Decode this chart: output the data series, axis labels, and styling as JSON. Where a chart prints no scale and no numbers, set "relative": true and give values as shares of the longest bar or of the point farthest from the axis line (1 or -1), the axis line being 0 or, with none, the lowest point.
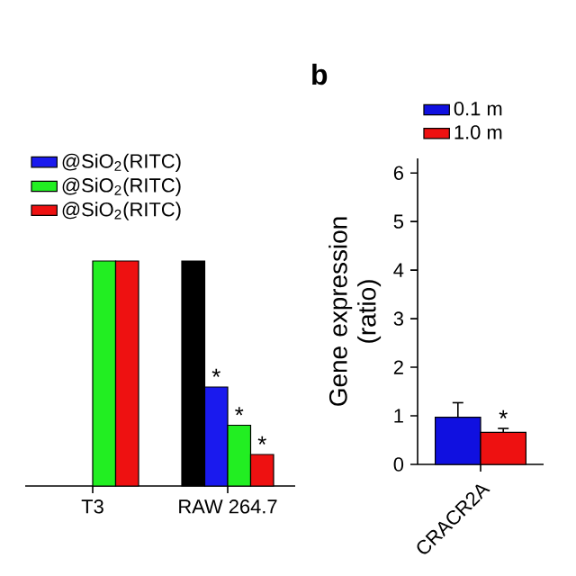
{
  "chart_data": [
    {
      "type": "bar",
      "relative": true,
      "categories": [
        "T3",
        "RAW 264.7"
      ],
      "legend": "top",
      "series": [
        {
          "color": "#000000",
          "values": [
            null,
            1.0
          ]
        },
        {
          "name": "@SiO$_{2}$(RITC)",
          "color": "#1a1aee",
          "values": [
            null,
            0.44
          ]
        },
        {
          "name": "@SiO$_{2}$(RITC)",
          "color": "#22ee22",
          "values": [
            1.0,
            0.27
          ]
        },
        {
          "name": "@SiO$_{2}$(RITC)",
          "color": "#ee1111",
          "values": [
            1.0,
            0.14
          ]
        }
      ],
      "annotations": [
        {
          "text": "*",
          "x": "RAW 264.7",
          "y": 0.44
        },
        {
          "text": "*",
          "x": "RAW 264.7",
          "y": 0.27
        },
        {
          "text": "*",
          "x": "RAW 264.7",
          "y": 0.14
        }
      ]
    },
    {
      "type": "bar",
      "categories": [
        "CRACR2A"
      ],
      "ylabel": "Gene expression (ratio)",
      "ylim": [
        0,
        6.3
      ],
      "yticks": [
        0,
        1,
        2,
        3,
        4,
        5,
        6
      ],
      "legend": "top",
      "series": [
        {
          "name": "0.1 m",
          "color": "#1010e0",
          "values": [
            0.97
          ],
          "errors": [
            0.3
          ]
        },
        {
          "name": "1.0 m",
          "color": "#ee1111",
          "values": [
            0.66
          ],
          "errors": [
            0.08
          ]
        }
      ],
      "annotations": [
        "b",
        {
          "text": "*",
          "x": "CRACR2A",
          "y": 0.66
        }
      ]
    }
  ]
}
